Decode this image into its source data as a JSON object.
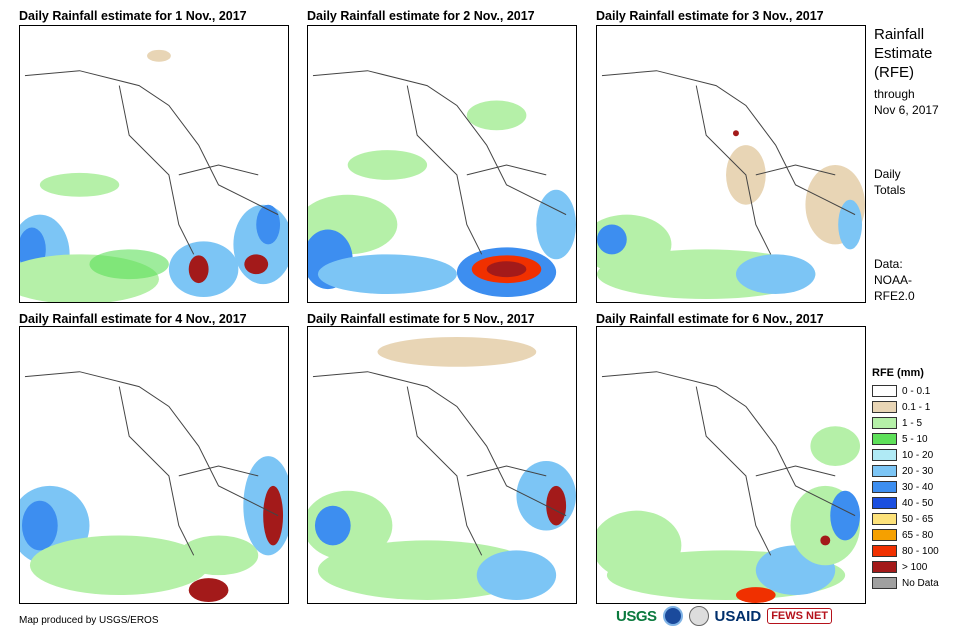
{
  "panels": [
    {
      "title": "Daily Rainfall estimate for 1 Nov., 2017"
    },
    {
      "title": "Daily Rainfall estimate for 2 Nov., 2017"
    },
    {
      "title": "Daily Rainfall estimate for 3 Nov., 2017"
    },
    {
      "title": "Daily Rainfall estimate for 4 Nov., 2017"
    },
    {
      "title": "Daily Rainfall estimate for 5 Nov., 2017"
    },
    {
      "title": "Daily Rainfall estimate for 6 Nov., 2017"
    }
  ],
  "side": {
    "title_lines": [
      "Rainfall",
      "Estimate",
      "(RFE)"
    ],
    "through_label": "through",
    "through_date": "Nov 6, 2017",
    "totals_lines": [
      "Daily",
      "Totals"
    ],
    "data_lines": [
      "Data:",
      "NOAA-",
      "RFE2.0"
    ]
  },
  "legend": {
    "title": "RFE (mm)",
    "items": [
      {
        "label": "0 - 0.1",
        "color": "#ffffff"
      },
      {
        "label": "0.1 - 1",
        "color": "#e8d5b5"
      },
      {
        "label": "1 - 5",
        "color": "#b5f0a8"
      },
      {
        "label": "5 - 10",
        "color": "#5ee05a"
      },
      {
        "label": "10 - 20",
        "color": "#b0eaf5"
      },
      {
        "label": "20 - 30",
        "color": "#7cc5f5"
      },
      {
        "label": "30 - 40",
        "color": "#3d8ef0"
      },
      {
        "label": "40 - 50",
        "color": "#1b4fe0"
      },
      {
        "label": "50 - 65",
        "color": "#fde27a"
      },
      {
        "label": "65 - 80",
        "color": "#f5a000"
      },
      {
        "label": "80 - 100",
        "color": "#f03000"
      },
      {
        "label": "> 100",
        "color": "#a31a1a"
      },
      {
        "label": "No Data",
        "color": "#a0a0a0"
      }
    ]
  },
  "credit": "Map produced by USGS/EROS",
  "logos": {
    "usgs": "USGS",
    "usaid": "USAID",
    "fews": "FEWS NET"
  }
}
